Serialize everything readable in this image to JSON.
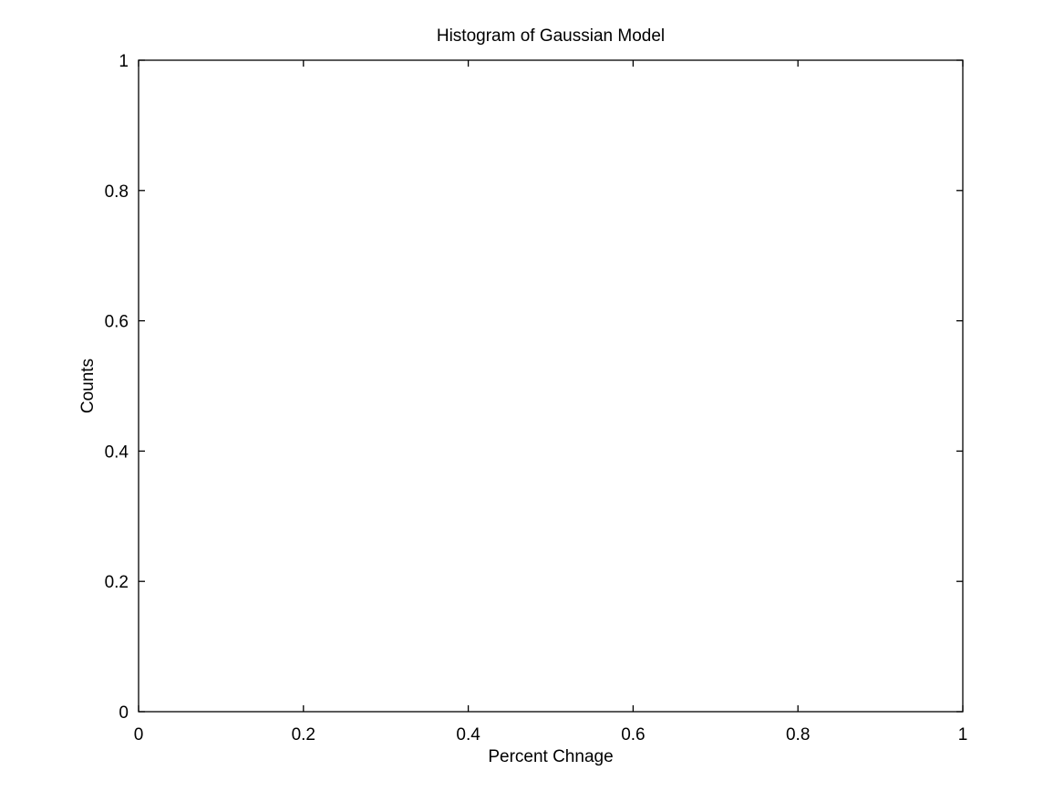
{
  "chart_data": {
    "type": "bar",
    "title": "Histogram of Gaussian Model",
    "xlabel": "Percent Chnage",
    "ylabel": "Counts",
    "xlim": [
      0,
      1
    ],
    "ylim": [
      0,
      1
    ],
    "xticks": [
      "0",
      "0.2",
      "0.4",
      "0.6",
      "0.8",
      "1"
    ],
    "yticks": [
      "0",
      "0.2",
      "0.4",
      "0.6",
      "0.8",
      "1"
    ],
    "xtick_values": [
      0,
      0.2,
      0.4,
      0.6,
      0.8,
      1
    ],
    "ytick_values": [
      0,
      0.2,
      0.4,
      0.6,
      0.8,
      1
    ],
    "categories": [],
    "values": [],
    "grid": false,
    "legend": "none",
    "colors": {
      "axis": "#000000",
      "background": "#ffffff"
    }
  }
}
